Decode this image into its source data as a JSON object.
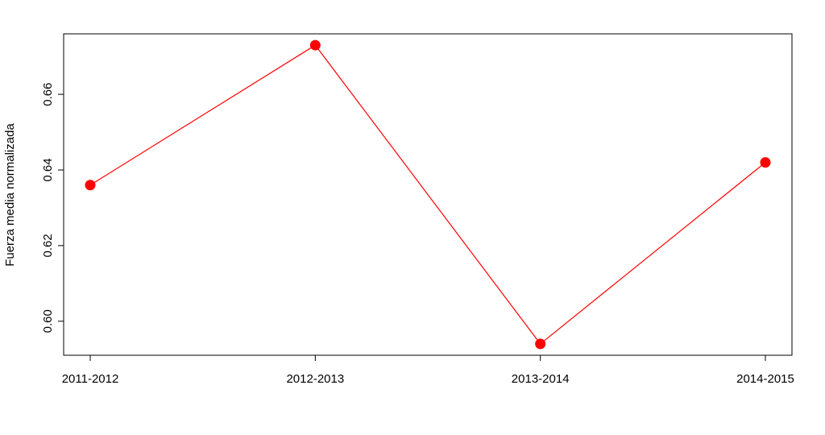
{
  "chart_data": {
    "type": "line",
    "title": "",
    "xlabel": "",
    "ylabel": "Fuerza media normalizada",
    "categories": [
      "2011-2012",
      "2012-2013",
      "2013-2014",
      "2014-2015"
    ],
    "series": [
      {
        "values": [
          0.636,
          0.673,
          0.594,
          0.642
        ],
        "color": "#ff0000"
      }
    ],
    "ylim": [
      0.591,
      0.676
    ],
    "yticks": [
      "0.60",
      "0.62",
      "0.64",
      "0.66"
    ],
    "grid": false,
    "legend": "none"
  }
}
